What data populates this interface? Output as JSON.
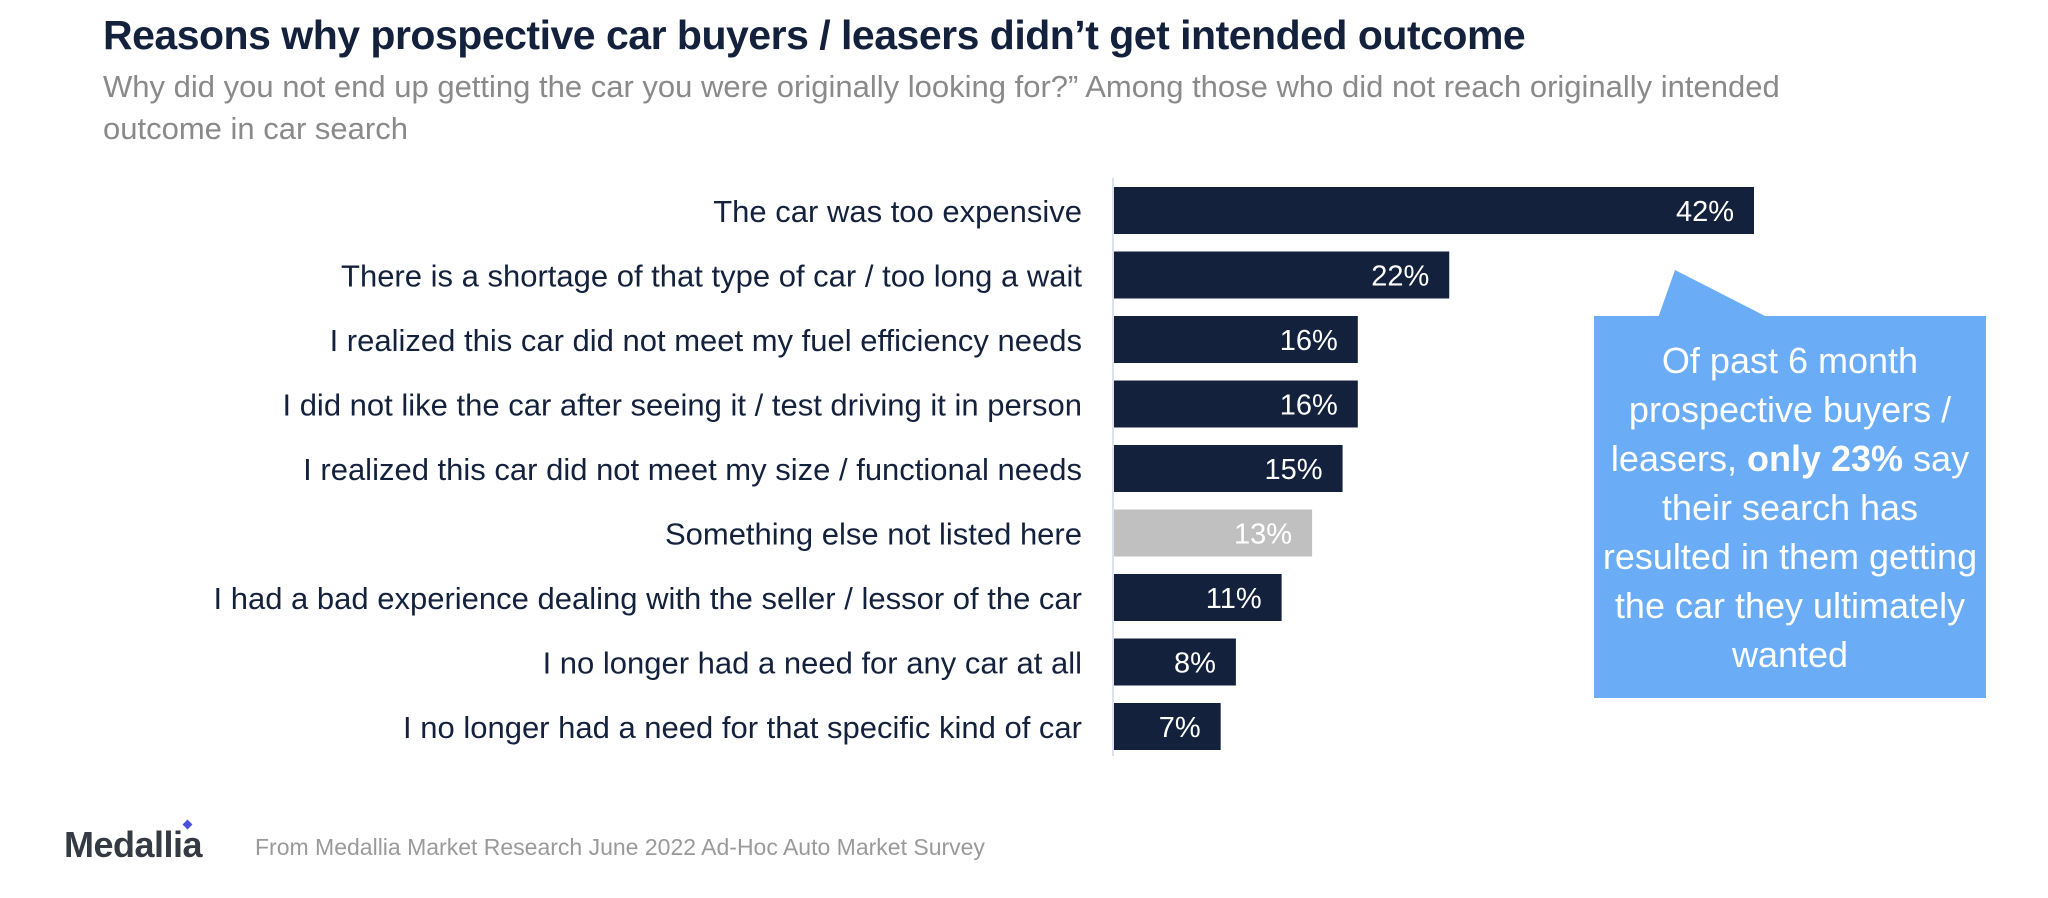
{
  "header": {
    "title": "Reasons why prospective car buyers / leasers didn’t get intended outcome",
    "subtitle": "Why did you not end up getting the car you were originally looking for?”  Among those who did not reach originally intended outcome in car search"
  },
  "chart_data": {
    "type": "bar",
    "orientation": "horizontal",
    "title": "Reasons why prospective car buyers / leasers didn’t get intended outcome",
    "subtitle": "Why did you not end up getting the car you were originally looking for?”  Among those who did not reach originally intended outcome in car search",
    "xlabel": "",
    "ylabel": "",
    "grid": false,
    "xlim": [
      0,
      42
    ],
    "categories": [
      "The car was too expensive",
      "There is a shortage of that type of car / too long a wait",
      "I realized this car did not meet my fuel efficiency needs",
      "I did not like the car after seeing it / test driving it in person",
      "I realized this car did not meet my size / functional needs",
      "Something else not listed here",
      "I had a bad experience dealing with the seller / lessor of the car",
      "I no longer had a need for any car at all",
      "I no longer had a need for that specific kind of car"
    ],
    "values": [
      42,
      22,
      16,
      16,
      15,
      13,
      11,
      8,
      7
    ],
    "value_labels": [
      "42%",
      "22%",
      "16%",
      "16%",
      "15%",
      "13%",
      "11%",
      "8%",
      "7%"
    ],
    "bar_colors": [
      "#14213d",
      "#14213d",
      "#14213d",
      "#14213d",
      "#14213d",
      "#c0c0c0",
      "#14213d",
      "#14213d",
      "#14213d"
    ],
    "unit": "%"
  },
  "callout": {
    "text_before": "Of past 6 month prospective buyers / leasers, ",
    "text_bold": "only 23%",
    "text_after": " say their search has resulted in them getting the car they ultimately wanted",
    "color": "#6aacf5"
  },
  "footer": {
    "logo": "Medallia",
    "source": "From Medallia Market Research June 2022 Ad-Hoc Auto Market Survey"
  },
  "colors": {
    "title": "#14213d",
    "subtitle": "#8a8a8a",
    "bar_primary": "#14213d",
    "bar_other": "#c0c0c0",
    "axis": "#dde0ee"
  }
}
